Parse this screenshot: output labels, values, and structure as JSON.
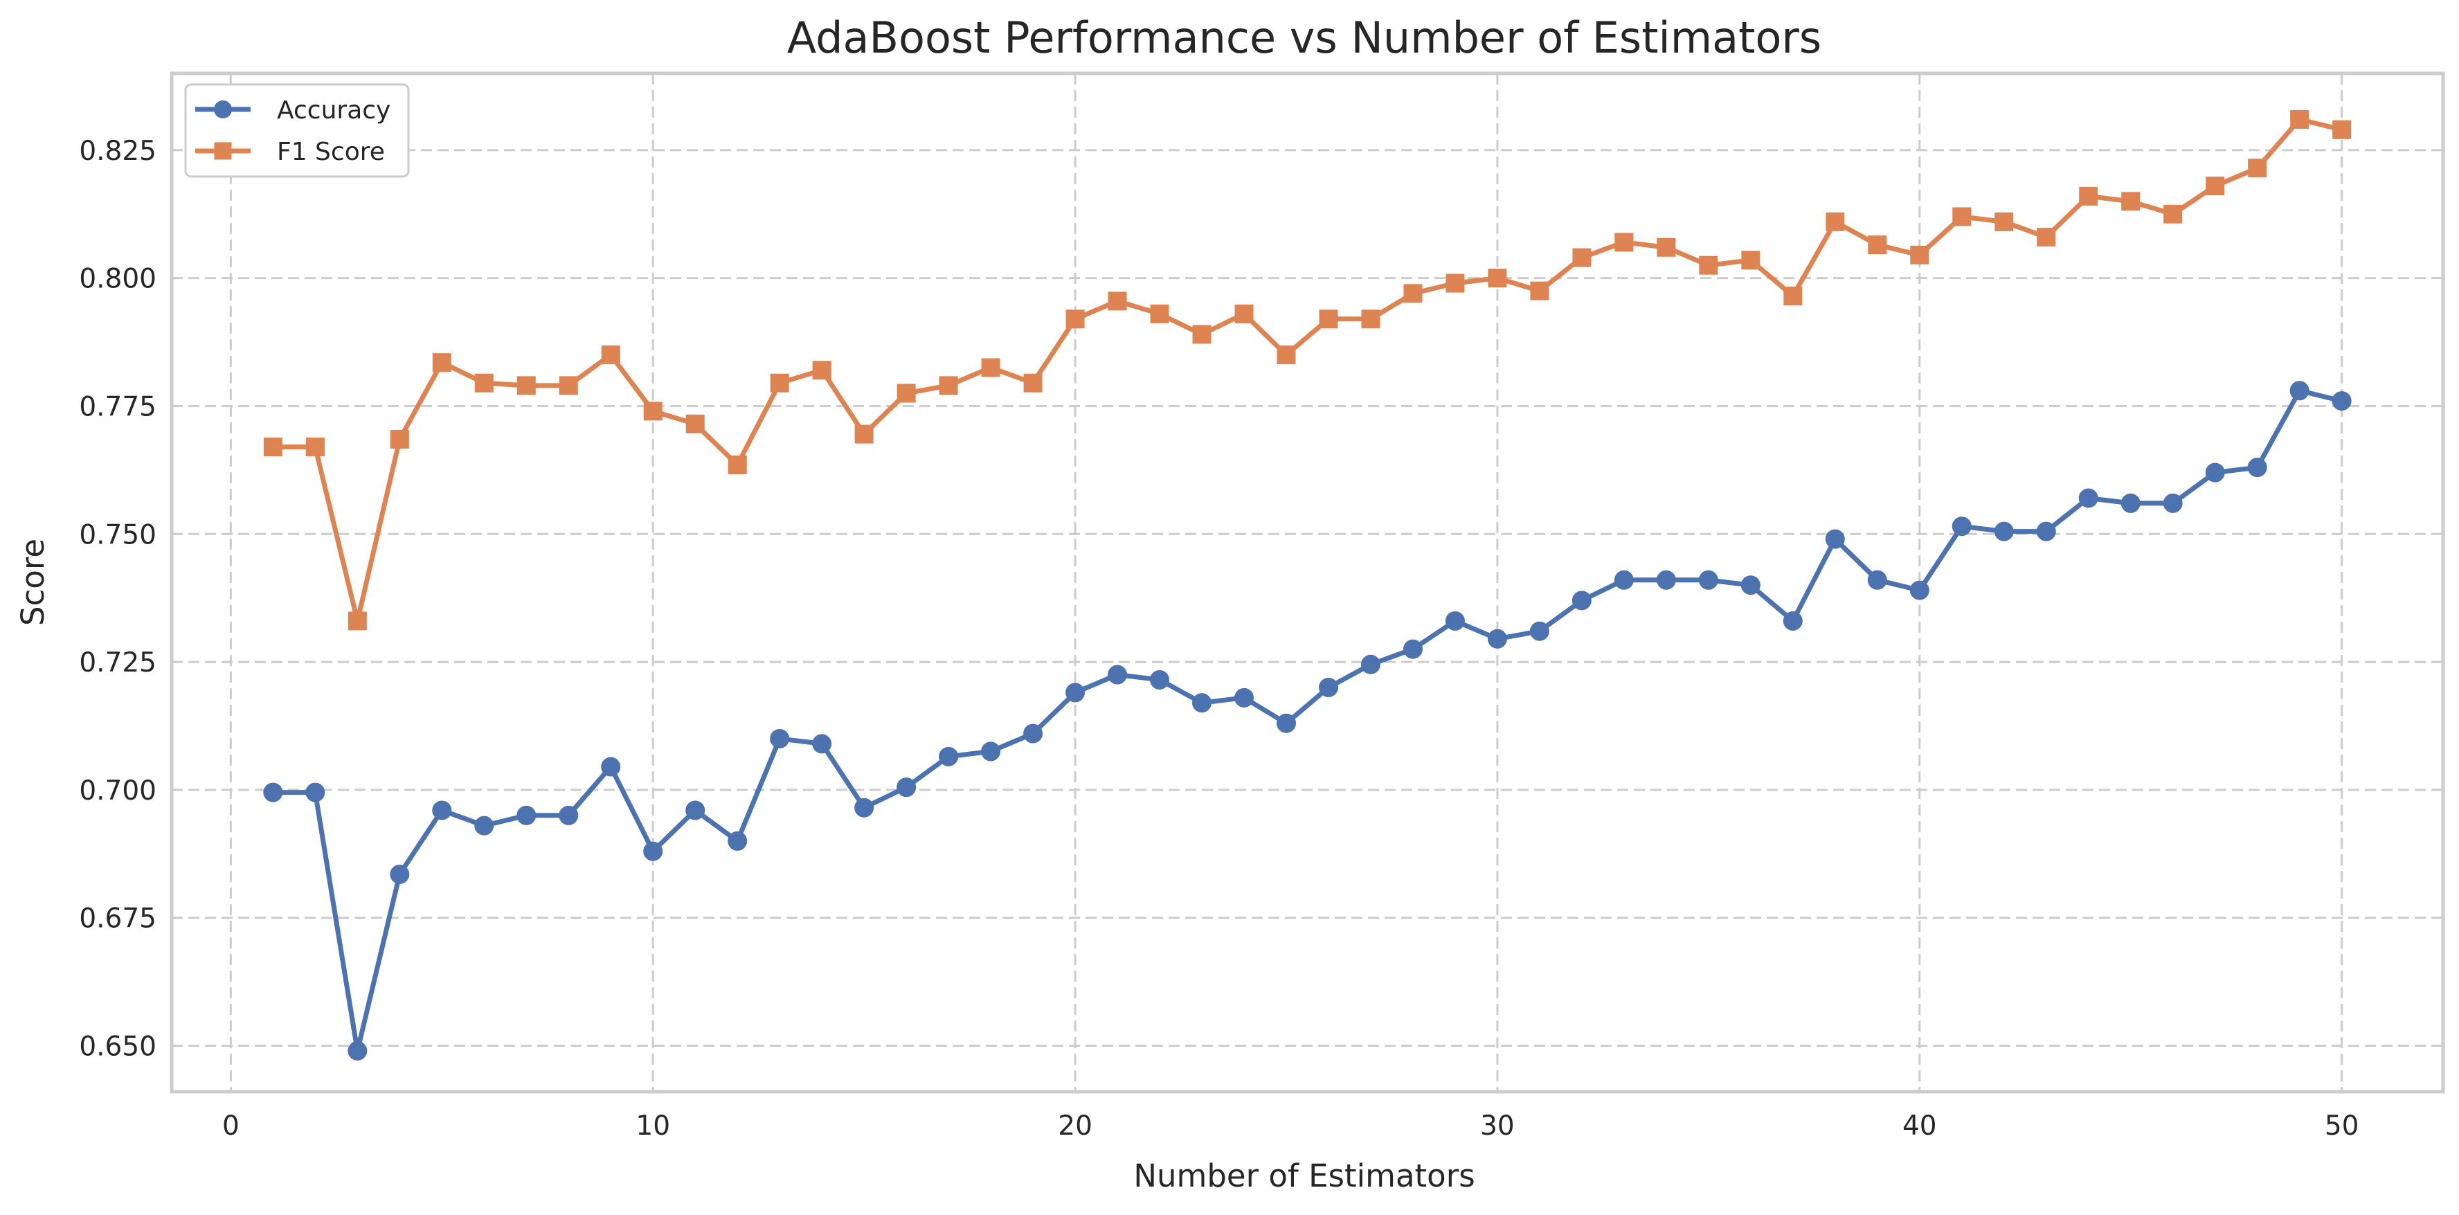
{
  "chart_data": {
    "type": "line",
    "title": "AdaBoost Performance vs Number of Estimators",
    "xlabel": "Number of Estimators",
    "ylabel": "Score",
    "xlim": [
      -1.4,
      52.4
    ],
    "ylim": [
      0.641,
      0.84
    ],
    "xticks": [
      0,
      10,
      20,
      30,
      40,
      50
    ],
    "yticks": [
      0.65,
      0.675,
      0.7,
      0.725,
      0.75,
      0.775,
      0.8,
      0.825
    ],
    "xtick_labels": [
      "0",
      "10",
      "20",
      "30",
      "40",
      "50"
    ],
    "ytick_labels": [
      "0.650",
      "0.675",
      "0.700",
      "0.725",
      "0.750",
      "0.775",
      "0.800",
      "0.825"
    ],
    "grid": true,
    "legend_position": "top-left",
    "x": [
      1,
      2,
      3,
      4,
      5,
      6,
      7,
      8,
      9,
      10,
      11,
      12,
      13,
      14,
      15,
      16,
      17,
      18,
      19,
      20,
      21,
      22,
      23,
      24,
      25,
      26,
      27,
      28,
      29,
      30,
      31,
      32,
      33,
      34,
      35,
      36,
      37,
      38,
      39,
      40,
      41,
      42,
      43,
      44,
      45,
      46,
      47,
      48,
      49,
      50
    ],
    "series": [
      {
        "name": "Accuracy",
        "color": "#4c72b0",
        "marker": "circle",
        "values": [
          0.6995,
          0.6995,
          0.649,
          0.6835,
          0.696,
          0.693,
          0.695,
          0.695,
          0.7045,
          0.688,
          0.696,
          0.69,
          0.71,
          0.709,
          0.6965,
          0.7005,
          0.7065,
          0.7075,
          0.711,
          0.719,
          0.7225,
          0.7215,
          0.717,
          0.718,
          0.713,
          0.72,
          0.7245,
          0.7275,
          0.733,
          0.7295,
          0.731,
          0.737,
          0.741,
          0.741,
          0.741,
          0.74,
          0.733,
          0.749,
          0.741,
          0.739,
          0.7515,
          0.7505,
          0.7505,
          0.757,
          0.756,
          0.756,
          0.762,
          0.763,
          0.778,
          0.776
        ]
      },
      {
        "name": "F1 Score",
        "color": "#dd8452",
        "marker": "square",
        "values": [
          0.767,
          0.767,
          0.733,
          0.7685,
          0.7835,
          0.7795,
          0.779,
          0.779,
          0.785,
          0.774,
          0.7715,
          0.7635,
          0.7795,
          0.782,
          0.7695,
          0.7775,
          0.779,
          0.7825,
          0.7795,
          0.792,
          0.7955,
          0.793,
          0.789,
          0.793,
          0.785,
          0.792,
          0.792,
          0.797,
          0.799,
          0.8,
          0.7975,
          0.804,
          0.807,
          0.806,
          0.8025,
          0.8035,
          0.7965,
          0.811,
          0.8065,
          0.8045,
          0.812,
          0.811,
          0.808,
          0.816,
          0.815,
          0.8125,
          0.818,
          0.8215,
          0.831,
          0.829
        ]
      }
    ]
  }
}
